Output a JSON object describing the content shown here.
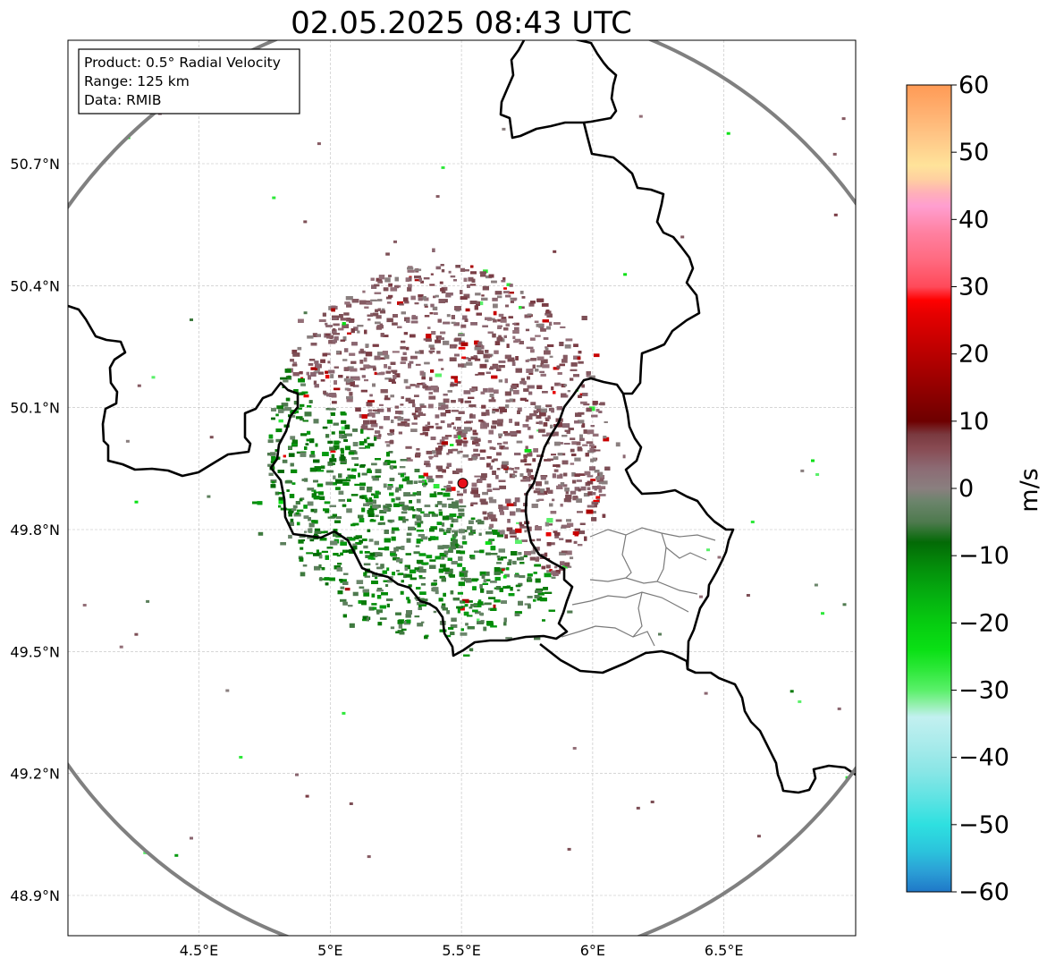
{
  "title": "02.05.2025 08:43 UTC",
  "info_box": {
    "product": "Product: 0.5° Radial Velocity",
    "range": "Range: 125 km",
    "data": "Data: RMIB"
  },
  "map": {
    "lon_range": [
      4.0,
      7.0
    ],
    "lat_range": [
      48.8,
      51.0
    ],
    "lon_ticks": [
      4.5,
      5.0,
      5.5,
      6.0,
      6.5
    ],
    "lon_tick_labels": [
      "4.5°E",
      "5°E",
      "5.5°E",
      "6°E",
      "6.5°E"
    ],
    "lat_ticks": [
      48.9,
      49.2,
      49.5,
      49.8,
      50.1,
      50.4,
      50.7
    ],
    "lat_tick_labels": [
      "48.9°N",
      "49.2°N",
      "49.5°N",
      "49.8°N",
      "50.1°N",
      "50.4°N",
      "50.7°N"
    ],
    "grid": true,
    "radar_site": {
      "lon": 5.505,
      "lat": 49.914,
      "color": "#e8101a"
    },
    "range_ring_color": "#808080",
    "border_color": "#000000"
  },
  "colorbar": {
    "label": "m/s",
    "min": -60,
    "max": 60,
    "ticks": [
      60,
      50,
      40,
      30,
      20,
      10,
      0,
      -10,
      -20,
      -30,
      -40,
      -50,
      -60
    ],
    "tick_labels": [
      "60",
      "50",
      "40",
      "30",
      "20",
      "10",
      "0",
      "−10",
      "−20",
      "−30",
      "−40",
      "−50",
      "−60"
    ],
    "stops": [
      {
        "v": -60,
        "color": "#1f78c8"
      },
      {
        "v": -57,
        "color": "#2b9fd6"
      },
      {
        "v": -54,
        "color": "#2bc3dc"
      },
      {
        "v": -50,
        "color": "#2ee0e0"
      },
      {
        "v": -46,
        "color": "#5fe3e3"
      },
      {
        "v": -42,
        "color": "#8ae6e6"
      },
      {
        "v": -38,
        "color": "#a9ebeb"
      },
      {
        "v": -34,
        "color": "#c2f0f0"
      },
      {
        "v": -32,
        "color": "#90f0a8"
      },
      {
        "v": -30,
        "color": "#5af06a"
      },
      {
        "v": -27,
        "color": "#2ee83a"
      },
      {
        "v": -24,
        "color": "#0ae015"
      },
      {
        "v": -20,
        "color": "#06cc10"
      },
      {
        "v": -16,
        "color": "#05b010"
      },
      {
        "v": -12,
        "color": "#04900b"
      },
      {
        "v": -8,
        "color": "#036a06"
      },
      {
        "v": -5,
        "color": "#4e7a4e"
      },
      {
        "v": -2,
        "color": "#6b846b"
      },
      {
        "v": 0,
        "color": "#8a7f7f"
      },
      {
        "v": 3,
        "color": "#8c6b74"
      },
      {
        "v": 6,
        "color": "#884a52"
      },
      {
        "v": 8,
        "color": "#7a3a40"
      },
      {
        "v": 10,
        "color": "#6e0000"
      },
      {
        "v": 14,
        "color": "#8c0000"
      },
      {
        "v": 18,
        "color": "#aa0000"
      },
      {
        "v": 22,
        "color": "#c80000"
      },
      {
        "v": 26,
        "color": "#e60000"
      },
      {
        "v": 28,
        "color": "#ff0000"
      },
      {
        "v": 30,
        "color": "#ff4a5a"
      },
      {
        "v": 34,
        "color": "#ff6a80"
      },
      {
        "v": 38,
        "color": "#ff80a0"
      },
      {
        "v": 42,
        "color": "#ff9ed0"
      },
      {
        "v": 44,
        "color": "#ffb0b8"
      },
      {
        "v": 46,
        "color": "#ffd0a0"
      },
      {
        "v": 48,
        "color": "#ffe39a"
      },
      {
        "v": 52,
        "color": "#ffc888"
      },
      {
        "v": 56,
        "color": "#ffb070"
      },
      {
        "v": 60,
        "color": "#ff9a55"
      }
    ]
  }
}
